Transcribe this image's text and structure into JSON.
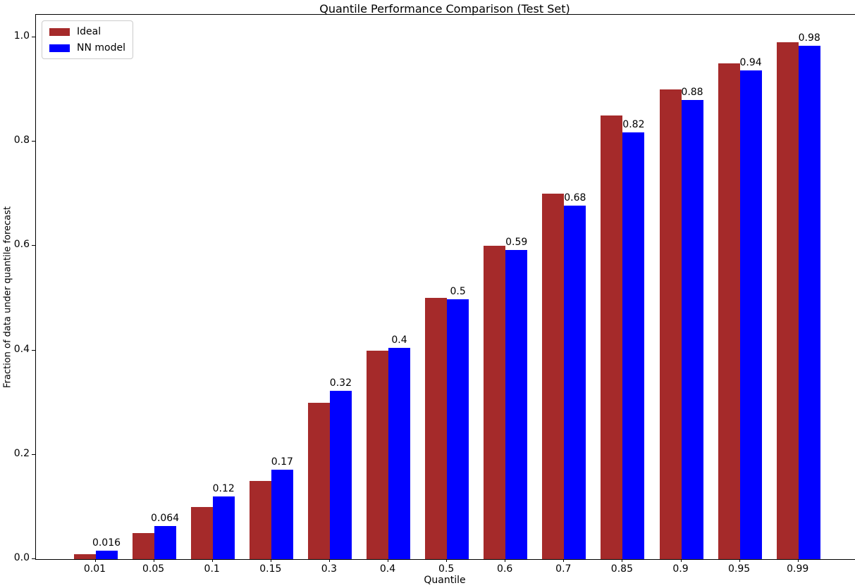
{
  "chart_data": {
    "type": "bar",
    "title": "Quantile Performance Comparison (Test Set)",
    "xlabel": "Quantile",
    "ylabel": "Fraction of data under quantile forecast",
    "categories": [
      "0.01",
      "0.05",
      "0.1",
      "0.15",
      "0.3",
      "0.4",
      "0.5",
      "0.6",
      "0.7",
      "0.85",
      "0.9",
      "0.95",
      "0.99"
    ],
    "series": [
      {
        "name": "Ideal",
        "color": "#A52A2A",
        "values": [
          0.01,
          0.05,
          0.1,
          0.15,
          0.3,
          0.4,
          0.5,
          0.6,
          0.7,
          0.85,
          0.9,
          0.95,
          0.99
        ]
      },
      {
        "name": "NN model",
        "color": "#0000FF",
        "values": [
          0.016,
          0.064,
          0.12,
          0.172,
          0.322,
          0.405,
          0.498,
          0.593,
          0.678,
          0.818,
          0.88,
          0.937,
          0.984
        ]
      }
    ],
    "bar_labels": [
      "0.016",
      "0.064",
      "0.12",
      "0.17",
      "0.32",
      "0.4",
      "0.5",
      "0.59",
      "0.68",
      "0.82",
      "0.88",
      "0.94",
      "0.98"
    ],
    "ylim": [
      0.0,
      1.0
    ],
    "yticks": [
      "0.0",
      "0.2",
      "0.4",
      "0.6",
      "0.8",
      "1.0"
    ],
    "grid": false,
    "legend_position": "upper left",
    "background_color": "#ffffff",
    "text_color": "#000000"
  }
}
